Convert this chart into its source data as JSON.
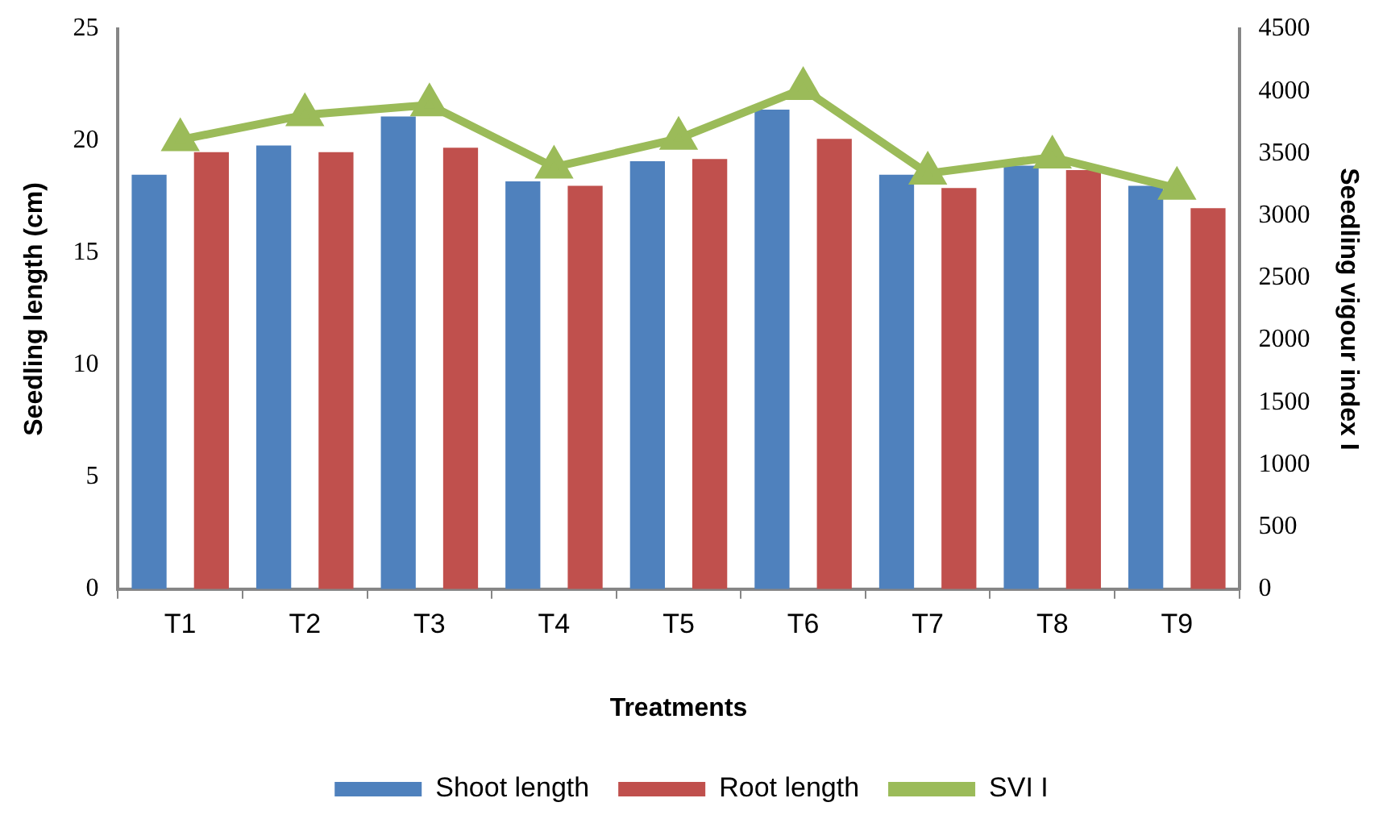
{
  "chart_data": {
    "type": "bar",
    "xlabel": "Treatments",
    "ylabel": "Seedling length (cm)",
    "y2label": "Seedling vigour index I",
    "categories": [
      "T1",
      "T2",
      "T3",
      "T4",
      "T5",
      "T6",
      "T7",
      "T8",
      "T9"
    ],
    "series": [
      {
        "name": "Shoot length",
        "color": "#4f81bd",
        "values": [
          18.5,
          19.8,
          21.1,
          18.2,
          19.1,
          21.4,
          18.5,
          18.9,
          18.0
        ]
      },
      {
        "name": "Root length",
        "color": "#c0504d",
        "values": [
          19.5,
          19.5,
          19.7,
          18.0,
          19.2,
          20.1,
          17.9,
          18.7,
          17.0
        ]
      },
      {
        "name": "SVI I",
        "type": "line",
        "axis": "y2",
        "color": "#9bbb59",
        "marker": "triangle",
        "values": [
          3610,
          3810,
          3890,
          3390,
          3620,
          4020,
          3340,
          3470,
          3220
        ]
      }
    ],
    "ylim": [
      0,
      25
    ],
    "yticks": [
      0,
      5,
      10,
      15,
      20,
      25
    ],
    "y2lim": [
      0,
      4500
    ],
    "y2ticks": [
      0,
      500,
      1000,
      1500,
      2000,
      2500,
      3000,
      3500,
      4000,
      4500
    ],
    "grid": false,
    "legend": "bottom"
  }
}
